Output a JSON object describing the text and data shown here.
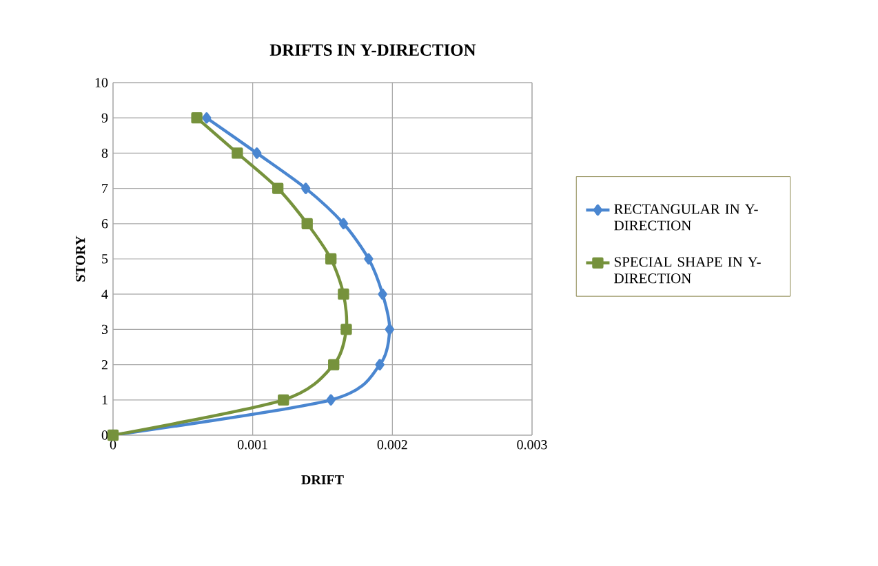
{
  "chart_data": {
    "type": "line",
    "title": "DRIFTS IN Y-DIRECTION",
    "xlabel": "DRIFT",
    "ylabel": "STORY",
    "xlim": [
      0,
      0.003
    ],
    "xticks": [
      0,
      0.001,
      0.002,
      0.003
    ],
    "ylim": [
      0,
      10
    ],
    "yticks": [
      0,
      1,
      2,
      3,
      4,
      5,
      6,
      7,
      8,
      9,
      10
    ],
    "grid": true,
    "legend": "right",
    "line_style": "solid",
    "series": [
      {
        "name": "RECTANGULAR IN Y-DIRECTION",
        "color": "#4a86d0",
        "marker": "diamond",
        "x": [
          0,
          0.00156,
          0.00191,
          0.00198,
          0.00193,
          0.00183,
          0.00165,
          0.00138,
          0.00103,
          0.00067
        ],
        "values": [
          0,
          1,
          2,
          3,
          4,
          5,
          6,
          7,
          8,
          9
        ]
      },
      {
        "name": "SPECIAL SHAPE IN Y-DIRECTION",
        "color": "#76923c",
        "marker": "square",
        "x": [
          0,
          0.00122,
          0.00158,
          0.00167,
          0.00165,
          0.00156,
          0.00139,
          0.00118,
          0.00089,
          0.0006
        ],
        "values": [
          0,
          1,
          2,
          3,
          4,
          5,
          6,
          7,
          8,
          9
        ]
      }
    ]
  }
}
